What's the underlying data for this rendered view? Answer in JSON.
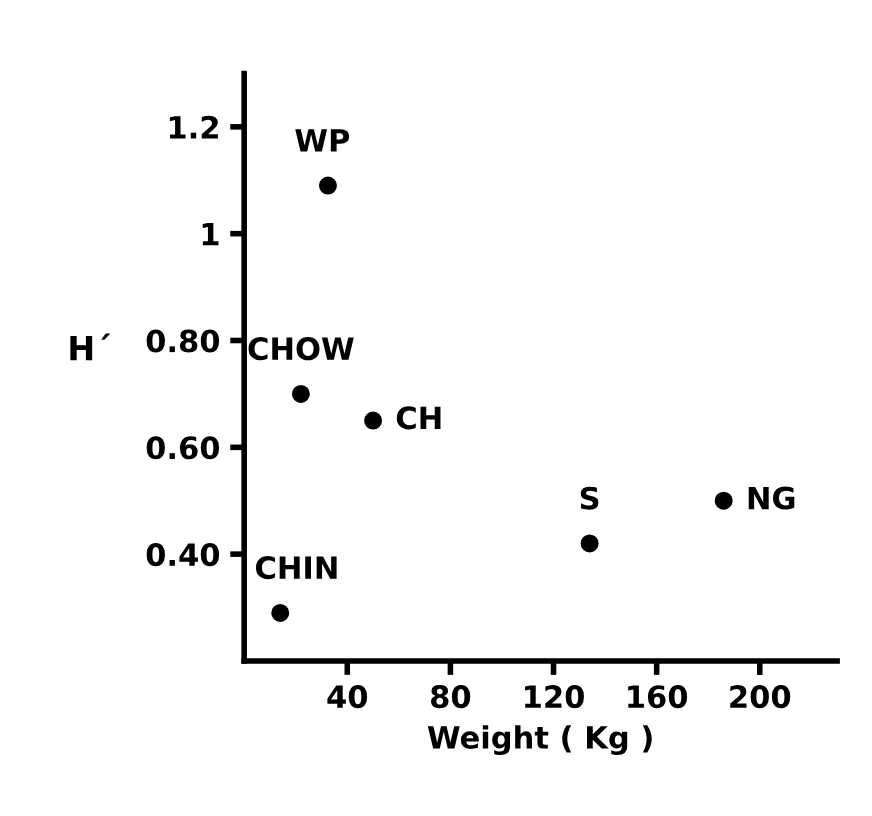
{
  "chart_data": {
    "type": "scatter",
    "xlabel": "Weight ( Kg )",
    "ylabel": "H´",
    "x": [
      32.5,
      22,
      50,
      134,
      186,
      14
    ],
    "series": [
      {
        "color": "#000000",
        "values": [
          1.09,
          0.7,
          0.65,
          0.42,
          0.5,
          0.29
        ]
      }
    ],
    "annotations": [
      {
        "text": "WP",
        "x": 32.5,
        "y": 1.09
      },
      {
        "text": "CHOW",
        "x": 22,
        "y": 0.7
      },
      {
        "text": "CH",
        "x": 50,
        "y": 0.65
      },
      {
        "text": "S",
        "x": 134,
        "y": 0.42
      },
      {
        "text": "NG",
        "x": 186,
        "y": 0.5
      },
      {
        "text": "CHIN",
        "x": 14,
        "y": 0.29
      }
    ],
    "xlim": [
      0,
      230
    ],
    "xticks": [
      40,
      80,
      120,
      160,
      200
    ],
    "ylim": [
      0.2,
      1.3
    ],
    "yticks": [
      {
        "value": 0.4,
        "label": "0.40"
      },
      {
        "value": 0.6,
        "label": "0.60"
      },
      {
        "value": 0.8,
        "label": "0.80"
      },
      1,
      1.2
    ],
    "grid": false,
    "legend": false,
    "marker": "circle"
  }
}
